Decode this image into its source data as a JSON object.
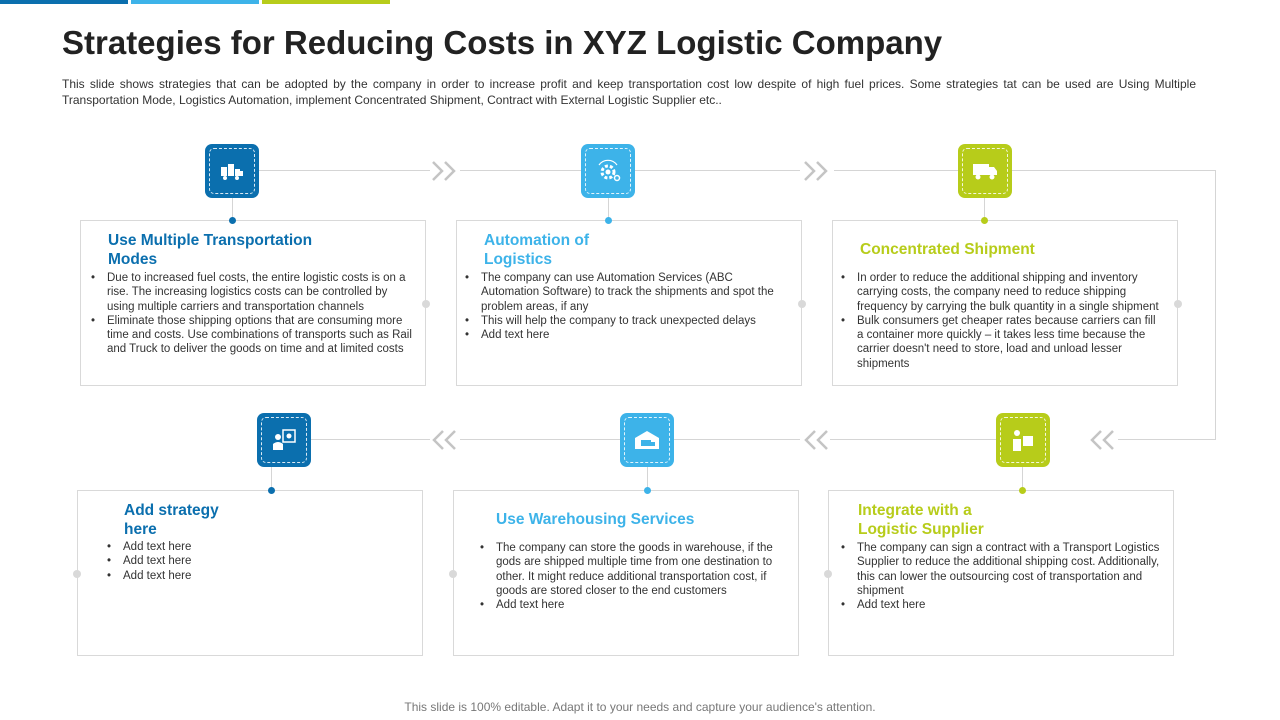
{
  "title": "Strategies for Reducing Costs in XYZ Logistic Company",
  "description": "This slide shows strategies that can be adopted by the company in order to increase profit and keep transportation cost low despite of high fuel prices. Some strategies tat can be used are Using Multiple Transportation  Mode, Logistics Automation, implement Concentrated Shipment, Contract with External Logistic Supplier etc..",
  "colors": {
    "dark_blue": "#0b6fae",
    "light_blue": "#3db3e9",
    "green": "#b7cc1a"
  },
  "cards": [
    {
      "title": "Use Multiple Transportation Modes",
      "icon": "trucks-icon",
      "bullets": [
        "Due to increased fuel costs, the entire logistic costs is on a rise. The increasing logistics costs can be controlled by using multiple carriers and transportation channels",
        "Eliminate those shipping options that are consuming more time and costs. Use combinations of transports such as Rail and Truck to deliver the goods on time and at limited costs"
      ]
    },
    {
      "title": "Automation of Logistics",
      "icon": "gear-automation-icon",
      "bullets": [
        "The company can use Automation Services (ABC Automation Software) to track the shipments and spot the problem areas, if any",
        "This will help the company to track unexpected delays",
        "Add text here"
      ]
    },
    {
      "title": "Concentrated Shipment",
      "icon": "truck-icon",
      "bullets": [
        "In order to reduce the additional shipping and inventory carrying costs, the company need to reduce shipping frequency by carrying the bulk quantity in a single shipment",
        "Bulk consumers get cheaper rates because carriers can fill a container more quickly – it takes less time because the carrier doesn't need to store, load and unload lesser shipments"
      ]
    },
    {
      "title": "Add strategy here",
      "icon": "person-screen-icon",
      "bullets": [
        "Add text here",
        "Add text here",
        "Add text here"
      ]
    },
    {
      "title": "Use Warehousing Services",
      "icon": "warehouse-icon",
      "bullets": [
        "The company can store the goods in warehouse, if the gods are shipped multiple time from one destination to other. It might reduce additional transportation cost, if goods are stored closer to the end customers",
        "Add text here"
      ]
    },
    {
      "title": "Integrate with a Logistic Supplier",
      "icon": "supplier-icon",
      "bullets": [
        "The company can sign a contract with a Transport Logistics Supplier to reduce the additional shipping cost. Additionally, this can lower the outsourcing cost of transportation and shipment",
        "Add text here"
      ]
    }
  ],
  "footer": "This slide is 100% editable. Adapt it to your needs and capture your audience's attention."
}
